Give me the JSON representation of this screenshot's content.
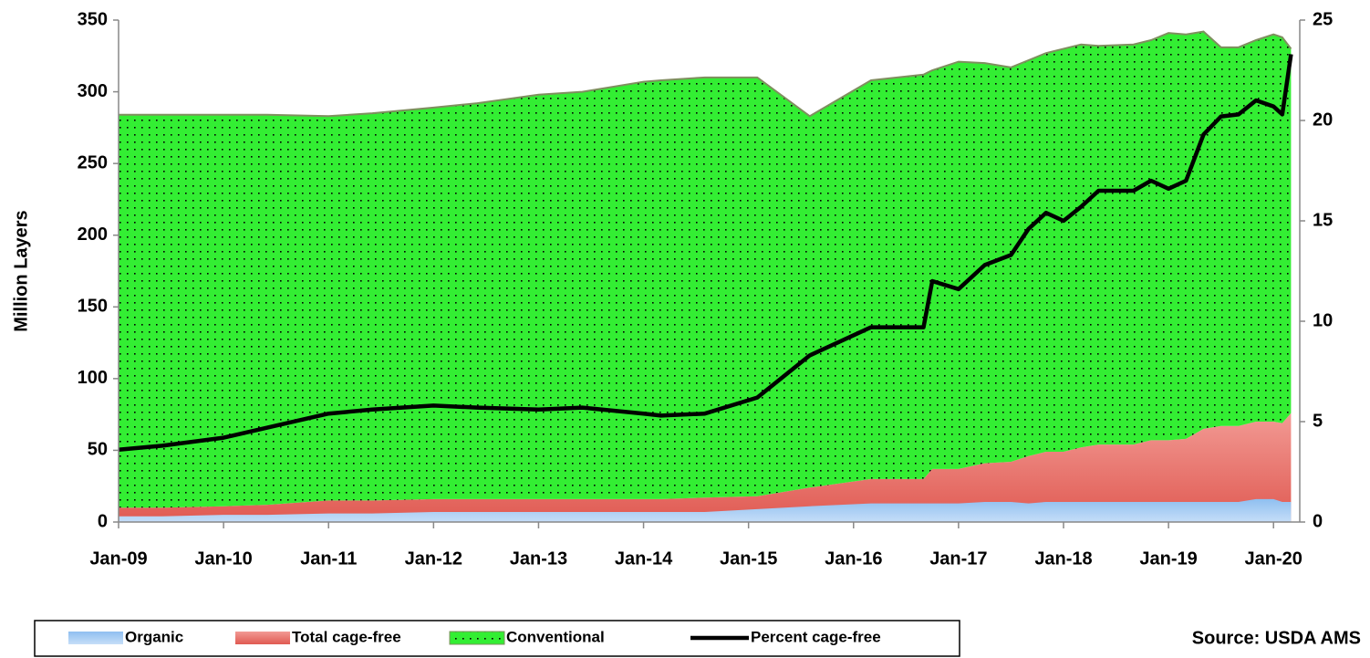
{
  "chart_data": {
    "type": "area",
    "y_label": "Million Layers",
    "source": "Source:  USDA AMS",
    "legend": "bottom",
    "x": [
      "2009-01",
      "2009-06",
      "2010-01",
      "2010-06",
      "2011-01",
      "2011-06",
      "2012-01",
      "2012-06",
      "2013-01",
      "2013-06",
      "2014-01",
      "2014-03",
      "2014-08",
      "2015-02",
      "2015-08",
      "2016-03",
      "2016-09",
      "2016-10",
      "2017-01",
      "2017-04",
      "2017-07",
      "2017-09",
      "2017-11",
      "2018-01",
      "2018-03",
      "2018-05",
      "2018-09",
      "2018-11",
      "2019-01",
      "2019-03",
      "2019-05",
      "2019-07",
      "2019-09",
      "2019-11",
      "2020-01",
      "2020-02",
      "2020-03"
    ],
    "series": [
      {
        "name": "Organic",
        "color": "#8fbff0",
        "values": [
          4,
          4,
          5,
          5,
          6,
          6,
          7,
          7,
          7,
          7,
          7,
          7,
          7,
          9,
          11,
          13,
          13,
          13,
          13,
          14,
          14,
          13,
          14,
          14,
          14,
          14,
          14,
          14,
          14,
          14,
          14,
          14,
          14,
          16,
          16,
          14,
          14
        ]
      },
      {
        "name": "Total cage-free",
        "color": "#f29a94",
        "values": [
          10,
          10,
          11,
          12,
          15,
          15,
          16,
          16,
          16,
          16,
          16,
          16,
          17,
          18,
          24,
          30,
          30,
          37,
          37,
          41,
          42,
          46,
          49,
          49,
          52,
          54,
          54,
          57,
          57,
          58,
          65,
          67,
          67,
          70,
          70,
          69,
          76
        ]
      },
      {
        "name": "Conventional",
        "color": "#33ee33",
        "stacked_on": "Total cage-free",
        "values": [
          274,
          274,
          273,
          272,
          268,
          270,
          273,
          276,
          282,
          284,
          291,
          292,
          293,
          292,
          259,
          278,
          282,
          278,
          284,
          279,
          275,
          276,
          278,
          281,
          281,
          278,
          279,
          279,
          284,
          282,
          277,
          264,
          264,
          266,
          270,
          269,
          254
        ]
      },
      {
        "name": "Percent cage-free",
        "color": "#000000",
        "type": "line",
        "axis": "y2",
        "values": [
          3.6,
          3.8,
          4.2,
          4.7,
          5.4,
          5.6,
          5.8,
          5.7,
          5.6,
          5.7,
          5.4,
          5.3,
          5.4,
          6.2,
          8.3,
          9.7,
          9.7,
          12.0,
          11.6,
          12.8,
          13.3,
          14.6,
          15.4,
          15.0,
          15.7,
          16.5,
          16.5,
          17.0,
          16.6,
          17.0,
          19.3,
          20.2,
          20.3,
          21.0,
          20.7,
          20.3,
          23.3
        ]
      }
    ],
    "xlim": [
      "2009-01",
      "2020-04"
    ],
    "xticks": [
      {
        "value": "2009-01",
        "label": "Jan-09"
      },
      {
        "value": "2010-01",
        "label": "Jan-10"
      },
      {
        "value": "2011-01",
        "label": "Jan-11"
      },
      {
        "value": "2012-01",
        "label": "Jan-12"
      },
      {
        "value": "2013-01",
        "label": "Jan-13"
      },
      {
        "value": "2014-01",
        "label": "Jan-14"
      },
      {
        "value": "2015-01",
        "label": "Jan-15"
      },
      {
        "value": "2016-01",
        "label": "Jan-16"
      },
      {
        "value": "2017-01",
        "label": "Jan-17"
      },
      {
        "value": "2018-01",
        "label": "Jan-18"
      },
      {
        "value": "2019-01",
        "label": "Jan-19"
      },
      {
        "value": "2020-01",
        "label": "Jan-20"
      }
    ],
    "ylim": [
      0,
      350
    ],
    "yticks": [
      0,
      50,
      100,
      150,
      200,
      250,
      300,
      350
    ],
    "y2lim": [
      0,
      25
    ],
    "y2ticks": [
      0,
      5,
      10,
      15,
      20,
      25
    ]
  }
}
